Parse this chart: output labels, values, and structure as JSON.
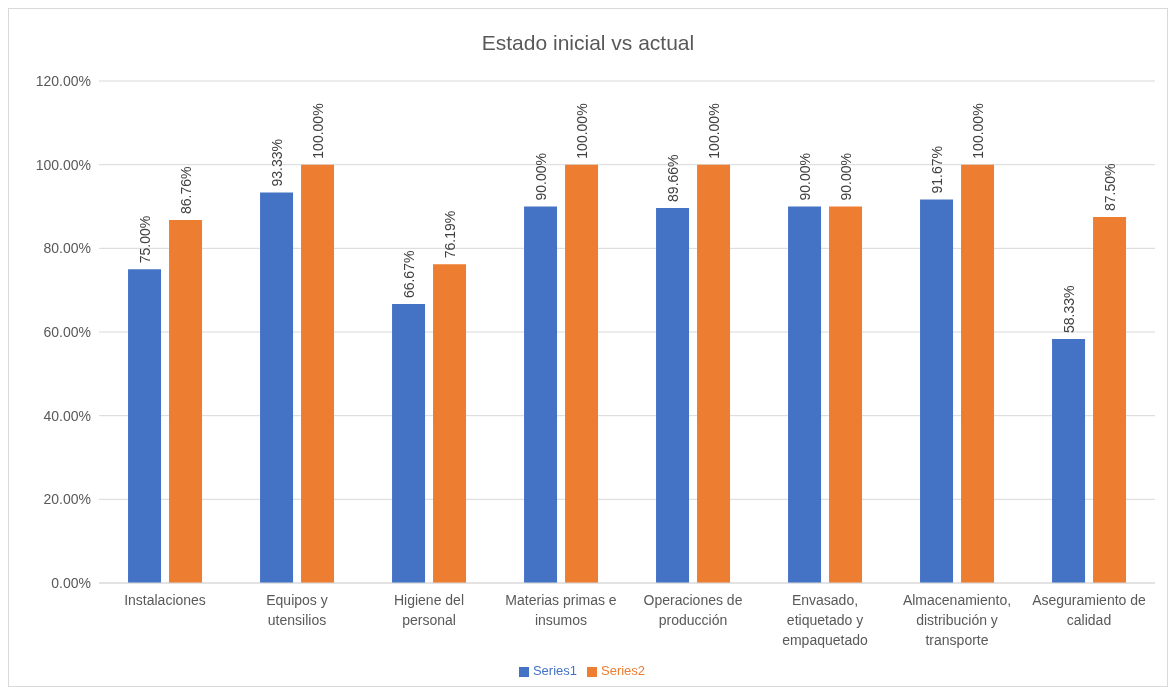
{
  "chart_data": {
    "type": "bar",
    "title": "Estado inicial vs actual",
    "categories": [
      "Instalaciones",
      "Equipos y utensilios",
      "Higiene del personal",
      "Materias primas e insumos",
      "Operaciones de producción",
      "Envasado, etiquetado y empaquetado",
      "Almacenamiento, distribución y transporte",
      "Aseguramiento de calidad"
    ],
    "series": [
      {
        "name": "Series1",
        "color": "#4472c4",
        "values": [
          75,
          93.33,
          66.67,
          90,
          89.66,
          90,
          91.67,
          58.33
        ],
        "value_labels": [
          "75.00%",
          "93.33%",
          "66.67%",
          "90.00%",
          "89.66%",
          "90.00%",
          "91.67%",
          "58.33%"
        ]
      },
      {
        "name": "Series2",
        "color": "#ed7d31",
        "values": [
          86.76,
          100,
          76.19,
          100,
          100,
          90,
          100,
          87.5
        ],
        "value_labels": [
          "86.76%",
          "100.00%",
          "76.19%",
          "100.00%",
          "100.00%",
          "90.00%",
          "100.00%",
          "87.50%"
        ]
      }
    ],
    "ylim": [
      0,
      120
    ],
    "yticks": [
      {
        "value": 0,
        "label": "0.00%"
      },
      {
        "value": 20,
        "label": "20.00%"
      },
      {
        "value": 40,
        "label": "40.00%"
      },
      {
        "value": 60,
        "label": "60.00%"
      },
      {
        "value": 80,
        "label": "80.00%"
      },
      {
        "value": 100,
        "label": "100.00%"
      },
      {
        "value": 120,
        "label": "120.00%"
      }
    ],
    "grid": "y",
    "legend": "bottom"
  }
}
